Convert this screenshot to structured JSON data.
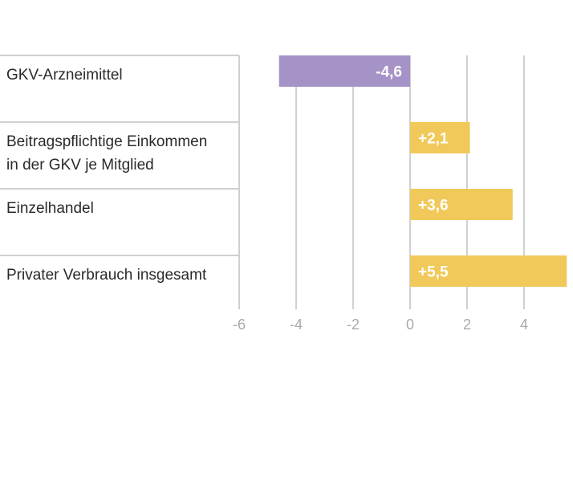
{
  "chart_data": {
    "type": "bar",
    "orientation": "horizontal",
    "categories": [
      [
        "GKV-Arzneimittel"
      ],
      [
        "Beitragspflichtige Einkommen",
        "in der GKV je Mitglied"
      ],
      [
        "Einzelhandel"
      ],
      [
        "Privater Verbrauch insgesamt"
      ]
    ],
    "values": [
      -4.6,
      2.1,
      3.6,
      5.5
    ],
    "data_labels": [
      "-4,6",
      "+2,1",
      "+3,6",
      "+5,5"
    ],
    "colors": [
      "#a593c8",
      "#f0c95a",
      "#f0c95a",
      "#f0c95a"
    ],
    "xlim": [
      -6,
      5.5
    ],
    "x_ticks": [
      -6,
      -4,
      -2,
      0,
      2,
      4
    ],
    "x_tick_labels": [
      "-6",
      "-4",
      "-2",
      "0",
      "2",
      "4"
    ],
    "grid": true
  }
}
